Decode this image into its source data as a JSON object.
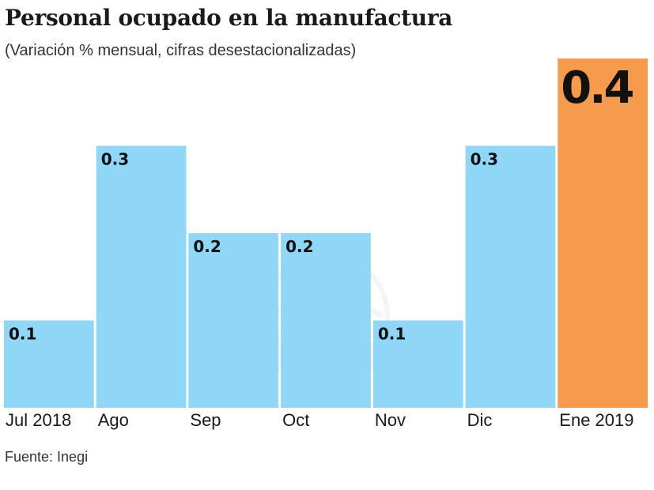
{
  "header": {
    "title": "Personal ocupado en la manufactura",
    "subtitle": "(Variación % mensual, cifras desestacionalizadas)"
  },
  "footer": {
    "source": "Fuente: Inegi"
  },
  "colors": {
    "bar": "#8fd6f7",
    "highlight": "#f69a4c",
    "text": "#1a1a1a"
  },
  "chart_data": {
    "type": "bar",
    "title": "Personal ocupado en la manufactura",
    "subtitle": "(Variación % mensual, cifras desestacionalizadas)",
    "categories": [
      "Jul 2018",
      "Ago",
      "Sep",
      "Oct",
      "Nov",
      "Dic",
      "Ene 2019"
    ],
    "values": [
      0.1,
      0.3,
      0.2,
      0.2,
      0.1,
      0.3,
      0.4
    ],
    "data_labels": [
      "0.1",
      "0.3",
      "0.2",
      "0.2",
      "0.1",
      "0.3",
      "0.4"
    ],
    "highlight_index": 6,
    "xlabel": "",
    "ylabel": "",
    "ylim": [
      0,
      0.4
    ],
    "grid": false,
    "legend": "none"
  }
}
